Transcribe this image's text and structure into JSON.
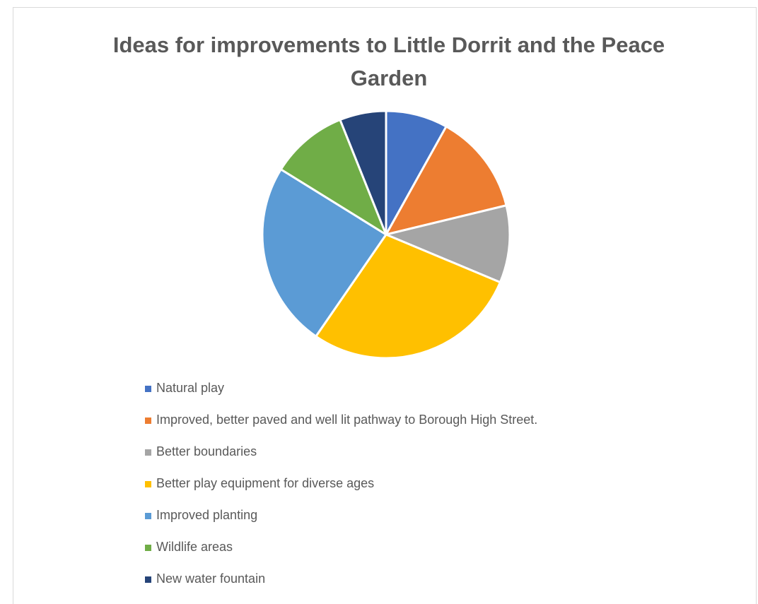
{
  "chart_data": {
    "type": "pie",
    "title": "Ideas for improvements to Little Dorrit and the Peace Garden",
    "legend_position": "bottom",
    "categories": [
      "Natural play",
      "Improved, better paved and well lit pathway to Borough High Street.",
      "Better boundaries",
      "Better play equipment for diverse ages",
      "Improved planting",
      "Wildlife areas",
      "New water fountain"
    ],
    "values": [
      8,
      13,
      10,
      28,
      24,
      10,
      6
    ],
    "colors": [
      "#4472C4",
      "#ED7D31",
      "#A5A5A5",
      "#FFC000",
      "#5B9BD5",
      "#70AD47",
      "#264478"
    ]
  }
}
